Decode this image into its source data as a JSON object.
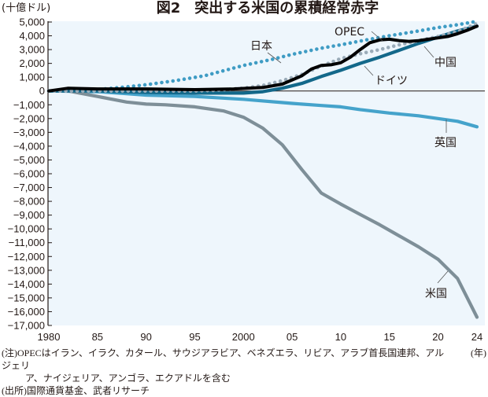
{
  "chart_data": {
    "type": "line",
    "title": "図2　突出する米国の累積経常赤字",
    "ylabel": "(十億ドル)",
    "xlabel": "(年)",
    "xlim": [
      1980,
      2024
    ],
    "ylim": [
      -17000,
      5000
    ],
    "grid": false,
    "yticks": [
      5000,
      4000,
      3000,
      2000,
      1000,
      0,
      -1000,
      -2000,
      -3000,
      -4000,
      -5000,
      -6000,
      -7000,
      -8000,
      -9000,
      -10000,
      -11000,
      -12000,
      -13000,
      -14000,
      -15000,
      -16000,
      -17000
    ],
    "ytick_labels": [
      "5,000",
      "4,000",
      "3,000",
      "2,000",
      "1,000",
      "0",
      "−1,000",
      "−2,000",
      "−3,000",
      "−4,000",
      "−5,000",
      "−6,000",
      "−7,000",
      "−8,000",
      "−9,000",
      "−10,000",
      "−11,000",
      "−12,000",
      "−13,000",
      "−14,000",
      "−15,000",
      "−16,000",
      "−17,000"
    ],
    "xticks": [
      1980,
      1985,
      1990,
      1995,
      2000,
      2005,
      2010,
      2015,
      2020,
      2024
    ],
    "xtick_labels": [
      "1980",
      "85",
      "90",
      "95",
      "2000",
      "05",
      "10",
      "15",
      "20",
      "24"
    ],
    "series": [
      {
        "name": "日本",
        "style": "dotted",
        "color": "#3f9cc4",
        "x": [
          1980,
          1983,
          1985,
          1988,
          1990,
          1993,
          1996,
          2000,
          2003,
          2005,
          2008,
          2010,
          2013,
          2015,
          2018,
          2020,
          2022,
          2024
        ],
        "y": [
          0,
          50,
          100,
          300,
          450,
          750,
          1100,
          1850,
          2300,
          2650,
          3100,
          3350,
          3750,
          4000,
          4350,
          4600,
          4800,
          5050
        ]
      },
      {
        "name": "OPEC",
        "style": "solid",
        "color": "#000000",
        "x": [
          1980,
          1982,
          1985,
          1990,
          1995,
          1999,
          2002,
          2004,
          2006,
          2007,
          2008,
          2009,
          2010,
          2011,
          2012,
          2013,
          2014,
          2015,
          2016,
          2017,
          2018,
          2019,
          2020,
          2021,
          2022,
          2023,
          2024
        ],
        "y": [
          0,
          200,
          150,
          150,
          100,
          150,
          250,
          500,
          1100,
          1600,
          1850,
          1900,
          2050,
          2450,
          3000,
          3500,
          3700,
          3750,
          3650,
          3600,
          3650,
          3750,
          3850,
          3950,
          4150,
          4400,
          4700
        ]
      },
      {
        "name": "中国",
        "style": "dotted",
        "color": "#9aabb8",
        "x": [
          1980,
          1985,
          1990,
          1995,
          1997,
          2000,
          2002,
          2004,
          2006,
          2008,
          2010,
          2012,
          2014,
          2016,
          2018,
          2020,
          2022,
          2024
        ],
        "y": [
          0,
          0,
          0,
          0,
          50,
          200,
          400,
          750,
          1200,
          1800,
          2350,
          2700,
          3000,
          3350,
          3650,
          3950,
          4300,
          4900
        ]
      },
      {
        "name": "ドイツ",
        "style": "solid",
        "color": "#13688a",
        "x": [
          1980,
          1985,
          1990,
          1995,
          2000,
          2002,
          2004,
          2006,
          2008,
          2010,
          2012,
          2014,
          2016,
          2018,
          2020,
          2022,
          2024
        ],
        "y": [
          0,
          0,
          -100,
          -150,
          -150,
          -50,
          200,
          550,
          1050,
          1500,
          2000,
          2450,
          2950,
          3450,
          3900,
          4350,
          4700
        ]
      },
      {
        "name": "英国",
        "style": "solid",
        "color": "#45a3cb",
        "x": [
          1980,
          1985,
          1988,
          1990,
          1995,
          2000,
          2005,
          2008,
          2010,
          2012,
          2015,
          2018,
          2020,
          2022,
          2024
        ],
        "y": [
          0,
          -50,
          -200,
          -300,
          -400,
          -600,
          -900,
          -1050,
          -1150,
          -1350,
          -1600,
          -1800,
          -2000,
          -2200,
          -2600
        ]
      },
      {
        "name": "米国",
        "style": "solid",
        "color": "#7e8f98",
        "x": [
          1980,
          1982,
          1985,
          1988,
          1990,
          1992,
          1995,
          1998,
          2000,
          2002,
          2004,
          2006,
          2008,
          2010,
          2012,
          2014,
          2016,
          2018,
          2020,
          2022,
          2024
        ],
        "y": [
          0,
          0,
          -400,
          -800,
          -950,
          -1000,
          -1150,
          -1450,
          -1900,
          -2700,
          -3900,
          -5700,
          -7400,
          -8200,
          -8950,
          -9700,
          -10500,
          -11300,
          -12200,
          -13600,
          -16400
        ]
      }
    ],
    "annotations": [
      "日本",
      "OPEC",
      "中国",
      "ドイツ",
      "英国",
      "米国"
    ]
  },
  "notes": {
    "note_line1": "(注)OPECはイラン、イラク、カタール、サウジアラビア、ベネズエラ、リビア、アラブ首長国連邦、アルジェリ",
    "note_line2": "ア、ナイジェリア、アンゴラ、エクアドルを含む",
    "source": "(出所)国際通貨基金、武者リサーチ"
  },
  "colors": {
    "plot_bg": "#eef6fc",
    "axis": "#231815"
  }
}
